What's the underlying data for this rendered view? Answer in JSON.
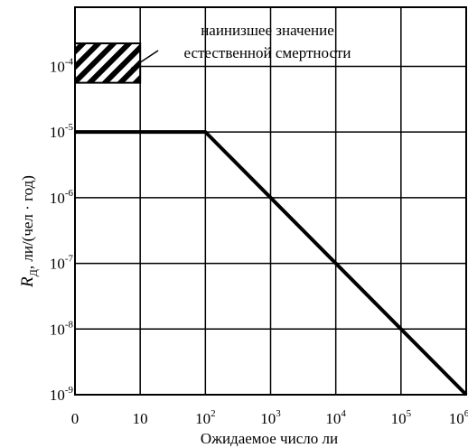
{
  "chart_data": {
    "type": "line",
    "title": "",
    "xlabel": "Ожидаемое число ли",
    "ylabel_main": "R",
    "ylabel_sub": "Д",
    "ylabel_rest": ", ли/(чел · год)",
    "x_ticks": [
      {
        "base": "0",
        "exp": ""
      },
      {
        "base": "10",
        "exp": ""
      },
      {
        "base": "10",
        "exp": "2"
      },
      {
        "base": "10",
        "exp": "3"
      },
      {
        "base": "10",
        "exp": "4"
      },
      {
        "base": "10",
        "exp": "5"
      },
      {
        "base": "10",
        "exp": "6"
      }
    ],
    "y_ticks": [
      {
        "base": "10",
        "exp": "-4"
      },
      {
        "base": "10",
        "exp": "-5"
      },
      {
        "base": "10",
        "exp": "-6"
      },
      {
        "base": "10",
        "exp": "-7"
      },
      {
        "base": "10",
        "exp": "-8"
      },
      {
        "base": "10",
        "exp": "-9"
      }
    ],
    "y_log_range": [
      -9,
      -3.1
    ],
    "series": [
      {
        "points": [
          {
            "x_index": 0,
            "log_y": -5
          },
          {
            "x_index": 2,
            "log_y": -5
          },
          {
            "x_index": 6,
            "log_y": -9
          }
        ]
      }
    ],
    "band": {
      "x_index_range": [
        0,
        1
      ],
      "log_y_range": [
        -4.25,
        -3.65
      ],
      "label_line1": "наинизшее значение",
      "label_line2": "естественной смертности"
    },
    "grid": true
  }
}
